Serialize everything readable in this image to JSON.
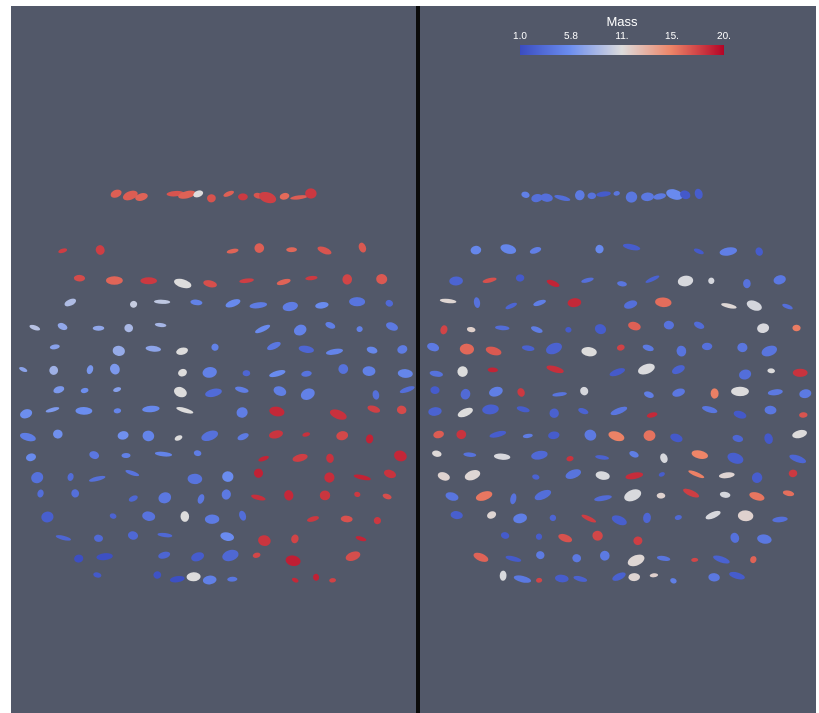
{
  "views": [
    {
      "name": "left-render-view",
      "field": "position",
      "source": "shared"
    },
    {
      "name": "right-render-view",
      "field": "mass",
      "source": "shared"
    }
  ],
  "colorbar": {
    "title": "Mass",
    "ticks": [
      "1.0",
      "5.8",
      "11.",
      "15.",
      "20."
    ],
    "tick_fractions": [
      0,
      0.24,
      0.5,
      0.74,
      1
    ],
    "colors": [
      "#3a4cc0",
      "#6a8cef",
      "#dddcdc",
      "#ee8568",
      "#b40426"
    ]
  },
  "colors": {
    "background": "#525869",
    "divider": "#0b0b0b"
  }
}
